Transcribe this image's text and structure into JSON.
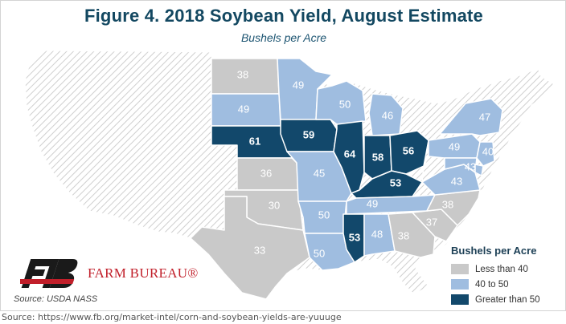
{
  "header": {
    "title": "Figure 4. 2018 Soybean Yield, August Estimate",
    "subtitle": "Bushels per Acre"
  },
  "colors": {
    "less_than_40": "#c9c9c9",
    "40_to_50": "#9fbde0",
    "greater_than_50": "#12486b",
    "no_data_hatch": "#cfcfcf",
    "title": "#134861",
    "brand_red": "#c11f2a"
  },
  "states": [
    {
      "name": "North Dakota",
      "value": "38",
      "category": "less_than_40"
    },
    {
      "name": "South Dakota",
      "value": "49",
      "category": "40_to_50"
    },
    {
      "name": "Nebraska",
      "value": "61",
      "category": "greater_than_50"
    },
    {
      "name": "Kansas",
      "value": "36",
      "category": "less_than_40"
    },
    {
      "name": "Oklahoma",
      "value": "30",
      "category": "less_than_40"
    },
    {
      "name": "Texas",
      "value": "33",
      "category": "less_than_40"
    },
    {
      "name": "Minnesota",
      "value": "49",
      "category": "40_to_50"
    },
    {
      "name": "Iowa",
      "value": "59",
      "category": "greater_than_50"
    },
    {
      "name": "Missouri",
      "value": "45",
      "category": "40_to_50"
    },
    {
      "name": "Arkansas",
      "value": "50",
      "category": "40_to_50"
    },
    {
      "name": "Louisiana",
      "value": "50",
      "category": "40_to_50"
    },
    {
      "name": "Wisconsin",
      "value": "50",
      "category": "40_to_50"
    },
    {
      "name": "Illinois",
      "value": "64",
      "category": "greater_than_50"
    },
    {
      "name": "Michigan",
      "value": "46",
      "category": "40_to_50"
    },
    {
      "name": "Indiana",
      "value": "58",
      "category": "greater_than_50"
    },
    {
      "name": "Ohio",
      "value": "56",
      "category": "greater_than_50"
    },
    {
      "name": "Kentucky",
      "value": "53",
      "category": "greater_than_50"
    },
    {
      "name": "Tennessee",
      "value": "49",
      "category": "40_to_50"
    },
    {
      "name": "Mississippi",
      "value": "53",
      "category": "greater_than_50"
    },
    {
      "name": "Alabama",
      "value": "48",
      "category": "40_to_50"
    },
    {
      "name": "Georgia",
      "value": "38",
      "category": "less_than_40"
    },
    {
      "name": "South Carolina",
      "value": "37",
      "category": "less_than_40"
    },
    {
      "name": "North Carolina",
      "value": "38",
      "category": "less_than_40"
    },
    {
      "name": "Virginia",
      "value": "43",
      "category": "40_to_50"
    },
    {
      "name": "Pennsylvania",
      "value": "49",
      "category": "40_to_50"
    },
    {
      "name": "New York",
      "value": "47",
      "category": "40_to_50"
    },
    {
      "name": "New Jersey",
      "value": "40",
      "category": "40_to_50"
    },
    {
      "name": "Delaware",
      "value": "43",
      "category": "40_to_50"
    },
    {
      "name": "Maryland",
      "value": "",
      "category": "40_to_50"
    }
  ],
  "legend": {
    "title": "Bushels per Acre",
    "items": [
      {
        "label": "Less than 40",
        "category": "less_than_40"
      },
      {
        "label": "40 to 50",
        "category": "40_to_50"
      },
      {
        "label": "Greater than 50",
        "category": "greater_than_50"
      }
    ]
  },
  "branding": {
    "logo_initials": "FB",
    "org_name": "FARM BUREAU®"
  },
  "sources": {
    "nass": "Source: USDA NASS",
    "url": "Source: https://www.fb.org/market-intel/corn-and-soybean-yields-are-yuuuge"
  }
}
